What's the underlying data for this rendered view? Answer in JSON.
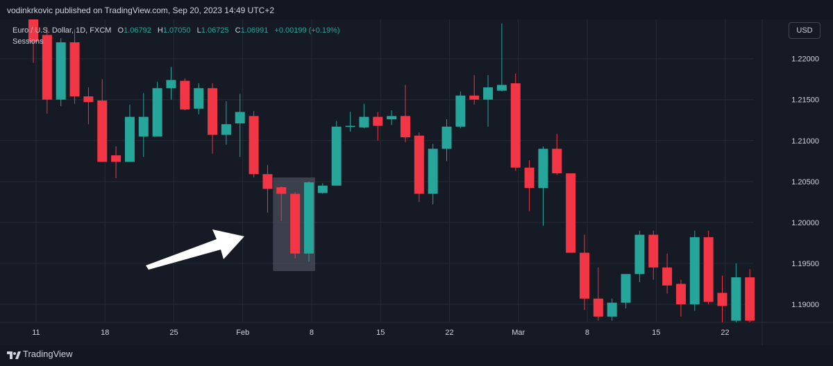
{
  "header": {
    "published": "vodinkrkovic published on TradingView.com, Sep 20, 2023 14:49 UTC+2"
  },
  "legend": {
    "symbol": "Euro / U.S. Dollar, 1D, FXCM",
    "o_label": "O",
    "o_value": "1.06792",
    "h_label": "H",
    "h_value": "1.07050",
    "l_label": "L",
    "l_value": "1.06725",
    "c_label": "C",
    "c_value": "1.06991",
    "change": "+0.00199 (+0.19%)",
    "sessions": "Sessions"
  },
  "currency_button": "USD",
  "footer": {
    "brand": "TradingView"
  },
  "colors": {
    "up": "#26a69a",
    "down": "#f23645",
    "bg": "#161a25",
    "grid": "#262b36",
    "text": "#d1d4dc"
  },
  "chart_data": {
    "type": "candlestick",
    "yticks": [
      "1.22000",
      "1.21500",
      "1.21000",
      "1.20500",
      "1.20000",
      "1.19500",
      "1.19000"
    ],
    "ylim": [
      1.1878,
      1.2248
    ],
    "xticks": [
      "11",
      "18",
      "25",
      "Feb",
      "8",
      "15",
      "22",
      "Mar",
      "8",
      "15",
      "22"
    ],
    "highlight": {
      "from_index": 18,
      "to_index": 20
    },
    "arrow": "points right toward highlighted candles",
    "candles": [
      {
        "date": "Jan 10",
        "o": 1.2258,
        "h": 1.2262,
        "l": 1.2195,
        "c": 1.2221
      },
      {
        "date": "Jan 11",
        "o": 1.2229,
        "h": 1.2238,
        "l": 1.2133,
        "c": 1.215
      },
      {
        "date": "Jan 12",
        "o": 1.215,
        "h": 1.2225,
        "l": 1.2142,
        "c": 1.222
      },
      {
        "date": "Jan 13",
        "o": 1.222,
        "h": 1.2236,
        "l": 1.2145,
        "c": 1.2154
      },
      {
        "date": "Jan 14",
        "o": 1.2154,
        "h": 1.2165,
        "l": 1.212,
        "c": 1.2147
      },
      {
        "date": "Jan 15",
        "o": 1.2149,
        "h": 1.2175,
        "l": 1.2074,
        "c": 1.2074
      },
      {
        "date": "Jan 18",
        "o": 1.2082,
        "h": 1.2093,
        "l": 1.2054,
        "c": 1.2074
      },
      {
        "date": "Jan 19",
        "o": 1.2074,
        "h": 1.2144,
        "l": 1.2074,
        "c": 1.2129
      },
      {
        "date": "Jan 20",
        "o": 1.2105,
        "h": 1.2158,
        "l": 1.208,
        "c": 1.2129
      },
      {
        "date": "Jan 21",
        "o": 1.2105,
        "h": 1.2172,
        "l": 1.2105,
        "c": 1.2164
      },
      {
        "date": "Jan 22",
        "o": 1.2164,
        "h": 1.219,
        "l": 1.215,
        "c": 1.2174
      },
      {
        "date": "Jan 25",
        "o": 1.2173,
        "h": 1.2176,
        "l": 1.2137,
        "c": 1.2138
      },
      {
        "date": "Jan 26",
        "o": 1.2139,
        "h": 1.217,
        "l": 1.2132,
        "c": 1.2164
      },
      {
        "date": "Jan 27",
        "o": 1.2164,
        "h": 1.217,
        "l": 1.2084,
        "c": 1.2107
      },
      {
        "date": "Jan 28",
        "o": 1.2107,
        "h": 1.2148,
        "l": 1.2095,
        "c": 1.212
      },
      {
        "date": "Jan 29",
        "o": 1.2121,
        "h": 1.2157,
        "l": 1.208,
        "c": 1.2135
      },
      {
        "date": "Feb 1",
        "o": 1.213,
        "h": 1.2136,
        "l": 1.2055,
        "c": 1.2059
      },
      {
        "date": "Feb 2",
        "o": 1.2059,
        "h": 1.207,
        "l": 1.2012,
        "c": 1.2041
      },
      {
        "date": "Feb 3",
        "o": 1.2043,
        "h": 1.2044,
        "l": 1.2002,
        "c": 1.2035
      },
      {
        "date": "Feb 4",
        "o": 1.2035,
        "h": 1.2037,
        "l": 1.1956,
        "c": 1.1962
      },
      {
        "date": "Feb 5",
        "o": 1.1962,
        "h": 1.205,
        "l": 1.1952,
        "c": 1.2049
      },
      {
        "date": "Feb 8",
        "o": 1.2036,
        "h": 1.2048,
        "l": 1.2035,
        "c": 1.2045
      },
      {
        "date": "Feb 9",
        "o": 1.2045,
        "h": 1.2124,
        "l": 1.2045,
        "c": 1.2117
      },
      {
        "date": "Feb 10",
        "o": 1.2117,
        "h": 1.2135,
        "l": 1.2111,
        "c": 1.2118
      },
      {
        "date": "Feb 11",
        "o": 1.2116,
        "h": 1.2145,
        "l": 1.2115,
        "c": 1.2129
      },
      {
        "date": "Feb 12",
        "o": 1.2129,
        "h": 1.2135,
        "l": 1.21,
        "c": 1.2118
      },
      {
        "date": "Feb 15",
        "o": 1.2126,
        "h": 1.2137,
        "l": 1.2119,
        "c": 1.213
      },
      {
        "date": "Feb 16",
        "o": 1.213,
        "h": 1.2168,
        "l": 1.2098,
        "c": 1.2104
      },
      {
        "date": "Feb 17",
        "o": 1.2106,
        "h": 1.211,
        "l": 1.2025,
        "c": 1.2035
      },
      {
        "date": "Feb 18",
        "o": 1.2035,
        "h": 1.2096,
        "l": 1.2022,
        "c": 1.209
      },
      {
        "date": "Feb 19",
        "o": 1.209,
        "h": 1.2126,
        "l": 1.2075,
        "c": 1.2117
      },
      {
        "date": "Feb 22",
        "o": 1.2117,
        "h": 1.216,
        "l": 1.2115,
        "c": 1.2155
      },
      {
        "date": "Feb 23",
        "o": 1.2155,
        "h": 1.218,
        "l": 1.2144,
        "c": 1.215
      },
      {
        "date": "Feb 24",
        "o": 1.215,
        "h": 1.218,
        "l": 1.2117,
        "c": 1.2165
      },
      {
        "date": "Feb 25",
        "o": 1.2161,
        "h": 1.2243,
        "l": 1.216,
        "c": 1.2168
      },
      {
        "date": "Mar 1",
        "o": 1.217,
        "h": 1.2182,
        "l": 1.2063,
        "c": 1.2067
      },
      {
        "date": "Mar 2",
        "o": 1.2067,
        "h": 1.2076,
        "l": 1.2014,
        "c": 1.2042
      },
      {
        "date": "Mar 3",
        "o": 1.2042,
        "h": 1.2093,
        "l": 1.1996,
        "c": 1.209
      },
      {
        "date": "Mar 4",
        "o": 1.209,
        "h": 1.2108,
        "l": 1.2058,
        "c": 1.206
      },
      {
        "date": "Mar 5",
        "o": 1.206,
        "h": 1.206,
        "l": 1.1963,
        "c": 1.1963
      },
      {
        "date": "Mar 8",
        "o": 1.1963,
        "h": 1.1985,
        "l": 1.1893,
        "c": 1.1907
      },
      {
        "date": "Mar 9",
        "o": 1.1907,
        "h": 1.1945,
        "l": 1.188,
        "c": 1.1885
      },
      {
        "date": "Mar 10",
        "o": 1.1885,
        "h": 1.1907,
        "l": 1.188,
        "c": 1.1902
      },
      {
        "date": "Mar 11",
        "o": 1.1902,
        "h": 1.1937,
        "l": 1.1895,
        "c": 1.1937
      },
      {
        "date": "Mar 12",
        "o": 1.1937,
        "h": 1.199,
        "l": 1.1927,
        "c": 1.1985
      },
      {
        "date": "Mar 15",
        "o": 1.1985,
        "h": 1.199,
        "l": 1.193,
        "c": 1.1945
      },
      {
        "date": "Mar 16",
        "o": 1.1945,
        "h": 1.1962,
        "l": 1.1913,
        "c": 1.1923
      },
      {
        "date": "Mar 17",
        "o": 1.1925,
        "h": 1.193,
        "l": 1.1885,
        "c": 1.19
      },
      {
        "date": "Mar 18",
        "o": 1.19,
        "h": 1.199,
        "l": 1.1892,
        "c": 1.1982
      },
      {
        "date": "Mar 19",
        "o": 1.1982,
        "h": 1.199,
        "l": 1.19,
        "c": 1.1903
      },
      {
        "date": "Mar 22",
        "o": 1.1914,
        "h": 1.1935,
        "l": 1.187,
        "c": 1.1898
      },
      {
        "date": "Mar 23",
        "o": 1.188,
        "h": 1.195,
        "l": 1.1878,
        "c": 1.1933
      },
      {
        "date": "Mar 24",
        "o": 1.1933,
        "h": 1.1943,
        "l": 1.1876,
        "c": 1.188
      }
    ]
  }
}
